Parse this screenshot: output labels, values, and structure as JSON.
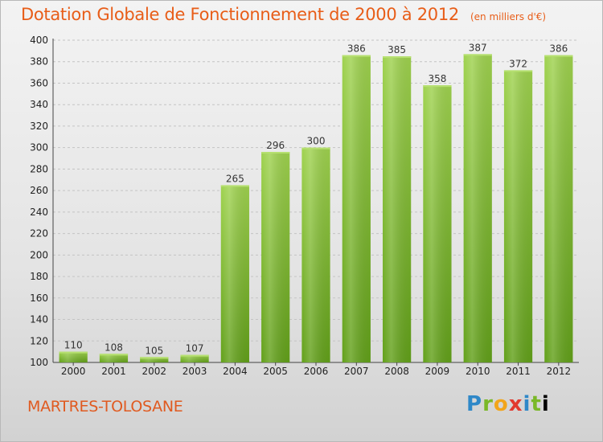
{
  "chart_data": {
    "type": "bar",
    "title": "Dotation Globale de Fonctionnement de 2000 à 2012",
    "subtitle": "(en milliers d'€)",
    "categories": [
      "2000",
      "2001",
      "2002",
      "2003",
      "2004",
      "2005",
      "2006",
      "2007",
      "2008",
      "2009",
      "2010",
      "2011",
      "2012"
    ],
    "values": [
      110,
      108,
      105,
      107,
      265,
      296,
      300,
      386,
      385,
      358,
      387,
      372,
      386
    ],
    "ylim": [
      100,
      400
    ],
    "yticks": [
      100,
      120,
      140,
      160,
      180,
      200,
      220,
      240,
      260,
      280,
      300,
      320,
      340,
      360,
      380,
      400
    ],
    "grid": true,
    "bar_color": "#8ac43e",
    "bar_dark": "#5f9a18",
    "xlabel": "",
    "ylabel": ""
  },
  "place_name": "MARTRES-TOLOSANE",
  "logo": {
    "letters": [
      "P",
      "r",
      "o",
      "x",
      "i",
      "t",
      "i"
    ]
  },
  "colors": {
    "title": "#e85d18",
    "place": "#e05a20"
  }
}
